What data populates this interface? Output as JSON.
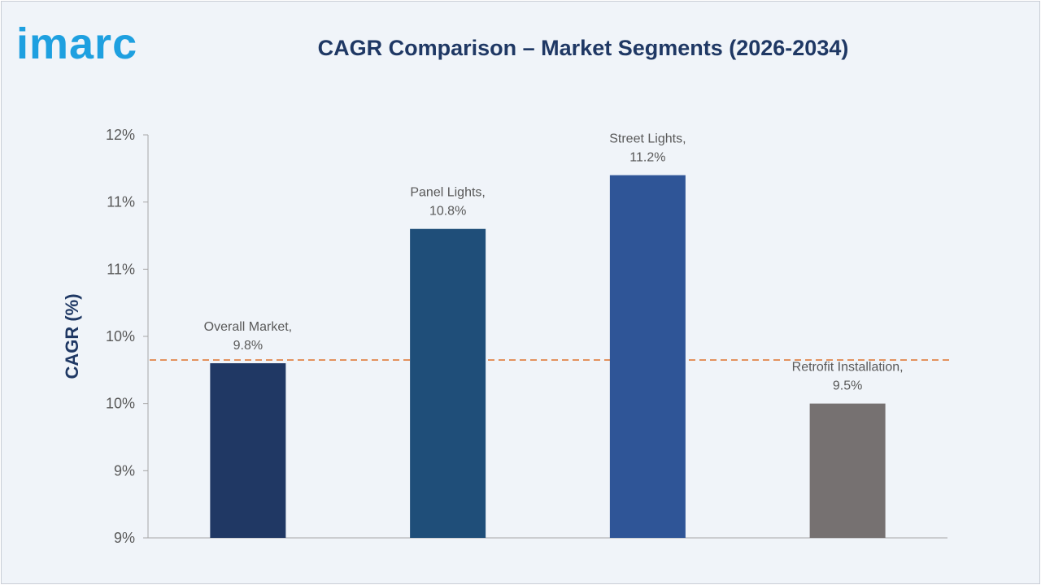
{
  "brand": {
    "logo_text": "imarc",
    "logo_color": "#1ea0e0"
  },
  "chart_data": {
    "type": "bar",
    "title": "CAGR Comparison – Market Segments (2026-2034)",
    "ylabel": "CAGR (%)",
    "xlabel": "",
    "categories": [
      "Overall Market",
      "Panel Lights",
      "Street Lights",
      "Retrofit Installation"
    ],
    "values": [
      9.8,
      10.8,
      11.2,
      9.5
    ],
    "data_labels": [
      [
        "Overall Market,",
        "9.8%"
      ],
      [
        "Panel Lights,",
        "10.8%"
      ],
      [
        "Street Lights,",
        "11.2%"
      ],
      [
        "Retrofit Installation,",
        "9.5%"
      ]
    ],
    "colors": [
      "#203864",
      "#1f4e79",
      "#2f5597",
      "#767171"
    ],
    "ylim": [
      8.5,
      11.5
    ],
    "y_ticks": [
      8.5,
      9.0,
      9.5,
      10.0,
      10.5,
      11.0,
      11.5
    ],
    "y_tick_labels": [
      "9%",
      "9%",
      "10%",
      "10%",
      "11%",
      "11%",
      "12%"
    ],
    "reference_line": {
      "value": 9.8,
      "color": "#e07b39",
      "style": "dashed"
    },
    "grid": false,
    "legend": "none"
  }
}
